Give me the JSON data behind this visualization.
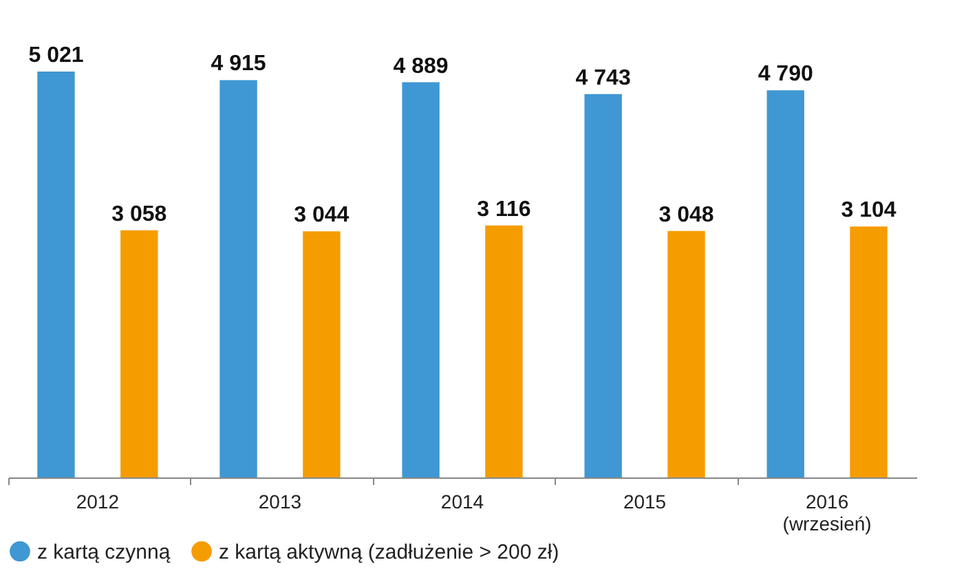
{
  "chart_data": {
    "type": "bar",
    "categories": [
      "2012",
      "2013",
      "2014",
      "2015",
      "2016\n(wrzesień)"
    ],
    "series": [
      {
        "name": "z kartą czynną",
        "color": "#3f97d3",
        "values": [
          5021,
          4915,
          4889,
          4743,
          4790
        ]
      },
      {
        "name": "z kartą aktywną (zadłużenie > 200 zł)",
        "color": "#f59c00",
        "values": [
          3058,
          3044,
          3116,
          3048,
          3104
        ]
      }
    ],
    "data_labels": true,
    "legend": "bottom",
    "grid": false
  }
}
